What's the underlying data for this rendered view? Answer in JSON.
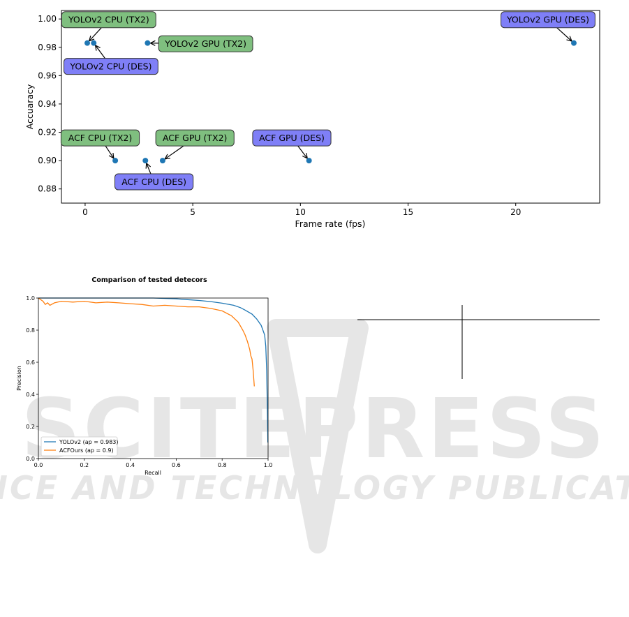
{
  "watermark": {
    "main": "SCITEPRESS",
    "sub": "SCIENCE AND TECHNOLOGY PUBLICATIONS",
    "color": "#e6e6e6"
  },
  "chart_data": [
    {
      "type": "scatter",
      "xlabel": "Frame rate (fps)",
      "ylabel": "Accuaracy",
      "xlim": [
        -1.1,
        23.9
      ],
      "ylim": [
        0.87,
        1.006
      ],
      "xticks": [
        0,
        5,
        10,
        15,
        20
      ],
      "yticks": [
        0.88,
        0.9,
        0.92,
        0.94,
        0.96,
        0.98,
        1.0
      ],
      "ytick_labels": [
        "0.88",
        "0.90",
        "0.92",
        "0.94",
        "0.96",
        "0.98",
        "1.00"
      ],
      "grid": false,
      "point_color": "#1f77b4",
      "annotation_colors": {
        "TX2": "#7fbf7f",
        "DES": "#7f7ff7"
      },
      "points": [
        {
          "label": "YOLOv2 CPU (TX2)",
          "x": 0.1,
          "y": 0.983,
          "box": "TX2",
          "lx": 1.1,
          "ly": 0.9995
        },
        {
          "label": "YOLOv2 CPU (DES)",
          "x": 0.4,
          "y": 0.983,
          "box": "DES",
          "lx": 1.2,
          "ly": 0.9665
        },
        {
          "label": "YOLOv2 GPU (TX2)",
          "x": 2.9,
          "y": 0.983,
          "box": "TX2",
          "lx": 5.6,
          "ly": 0.9825
        },
        {
          "label": "YOLOv2 GPU (DES)",
          "x": 22.7,
          "y": 0.983,
          "box": "DES",
          "lx": 21.5,
          "ly": 0.9995
        },
        {
          "label": "ACF CPU (TX2)",
          "x": 1.4,
          "y": 0.9,
          "box": "TX2",
          "lx": 0.7,
          "ly": 0.916
        },
        {
          "label": "ACF CPU (DES)",
          "x": 2.8,
          "y": 0.9,
          "box": "DES",
          "lx": 3.2,
          "ly": 0.885
        },
        {
          "label": "ACF GPU (TX2)",
          "x": 3.6,
          "y": 0.9,
          "box": "TX2",
          "lx": 5.1,
          "ly": 0.916
        },
        {
          "label": "ACF GPU (DES)",
          "x": 10.4,
          "y": 0.9,
          "box": "DES",
          "lx": 9.6,
          "ly": 0.916
        }
      ]
    },
    {
      "type": "line",
      "title": "Comparison of tested detecors",
      "xlabel": "Recall",
      "ylabel": "Precision",
      "xlim": [
        0,
        1
      ],
      "ylim": [
        0,
        1
      ],
      "ticks": [
        0.0,
        0.2,
        0.4,
        0.6,
        0.8,
        1.0
      ],
      "tick_labels": [
        "0.0",
        "0.2",
        "0.4",
        "0.6",
        "0.8",
        "1.0"
      ],
      "legend_position": "lower-left",
      "series": [
        {
          "name": "YOLOv2 (ap = 0.983)",
          "color": "#1f77b4",
          "x": [
            0.0,
            0.02,
            0.1,
            0.2,
            0.3,
            0.4,
            0.5,
            0.6,
            0.65,
            0.7,
            0.75,
            0.8,
            0.85,
            0.88,
            0.9,
            0.93,
            0.95,
            0.97,
            0.985,
            0.99,
            0.994,
            0.997,
            0.999
          ],
          "y": [
            1.0,
            1.0,
            1.0,
            1.0,
            1.0,
            1.0,
            1.0,
            0.995,
            0.99,
            0.985,
            0.978,
            0.968,
            0.955,
            0.94,
            0.925,
            0.9,
            0.87,
            0.83,
            0.77,
            0.7,
            0.55,
            0.3,
            0.1
          ]
        },
        {
          "name": "ACFOurs (ap = 0.9)",
          "color": "#ff7f0e",
          "x": [
            0.0,
            0.02,
            0.03,
            0.04,
            0.05,
            0.07,
            0.1,
            0.15,
            0.2,
            0.25,
            0.3,
            0.35,
            0.4,
            0.45,
            0.5,
            0.55,
            0.6,
            0.65,
            0.7,
            0.75,
            0.8,
            0.84,
            0.87,
            0.89,
            0.9,
            0.91,
            0.92,
            0.925,
            0.93,
            0.935,
            0.94
          ],
          "y": [
            1.0,
            0.98,
            0.96,
            0.97,
            0.955,
            0.97,
            0.98,
            0.975,
            0.98,
            0.97,
            0.975,
            0.97,
            0.965,
            0.96,
            0.95,
            0.955,
            0.95,
            0.945,
            0.945,
            0.935,
            0.92,
            0.89,
            0.85,
            0.8,
            0.77,
            0.73,
            0.68,
            0.64,
            0.62,
            0.55,
            0.45
          ]
        }
      ]
    }
  ]
}
